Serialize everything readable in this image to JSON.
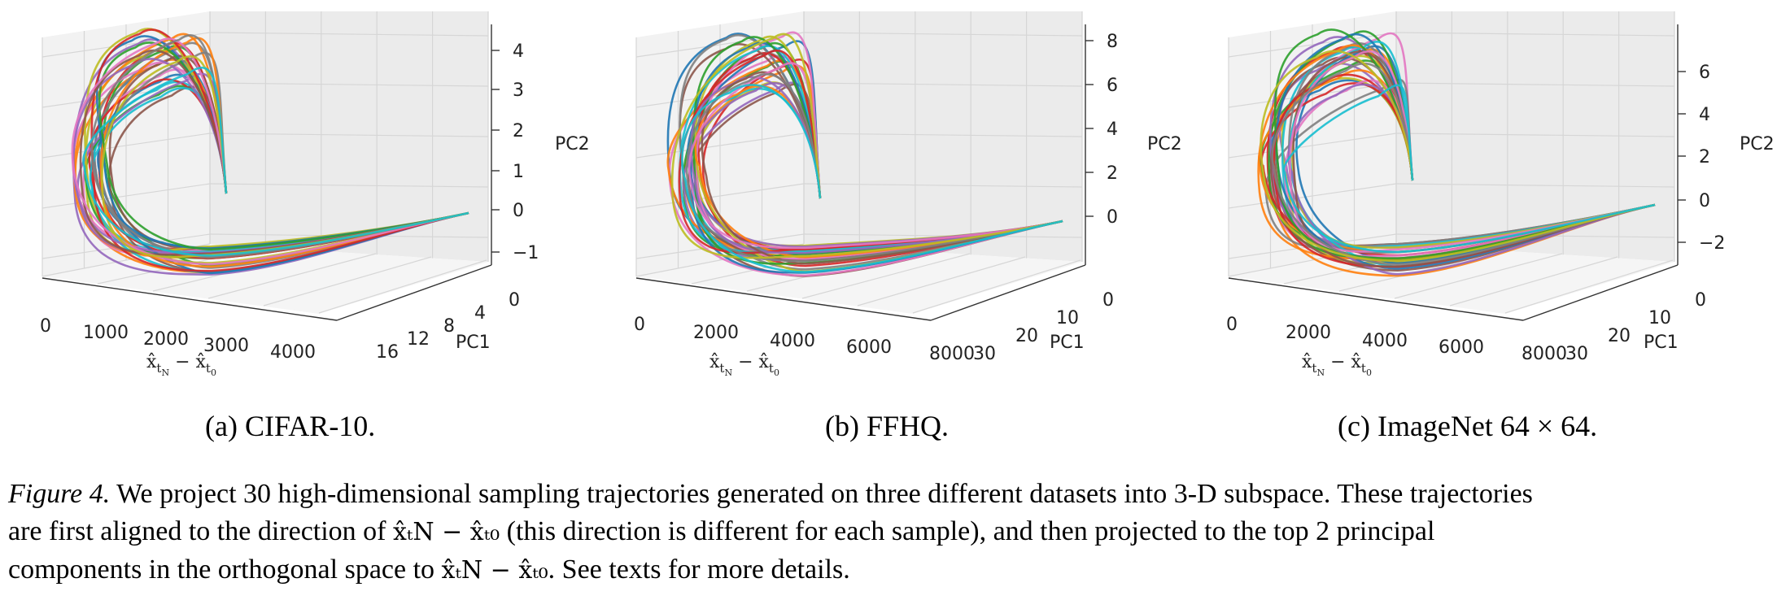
{
  "panels": [
    {
      "id": "a",
      "caption": "(a) CIFAR-10.",
      "xlabel": "x̂_{t_N} − x̂_{t_0}",
      "xticks": [
        "0",
        "1000",
        "2000",
        "3000",
        "4000"
      ],
      "ylabel": "PC1",
      "yticks": [
        "0",
        "4",
        "8",
        "12",
        "16"
      ],
      "zlabel": "PC2",
      "zticks": [
        "4",
        "3",
        "2",
        "1",
        "0",
        "−1"
      ]
    },
    {
      "id": "b",
      "caption": "(b) FFHQ.",
      "xlabel": "x̂_{t_N} − x̂_{t_0}",
      "xticks": [
        "0",
        "2000",
        "4000",
        "6000",
        "8000"
      ],
      "ylabel": "PC1",
      "yticks": [
        "0",
        "10",
        "20",
        "30"
      ],
      "zlabel": "PC2",
      "zticks": [
        "8",
        "6",
        "4",
        "2",
        "0"
      ]
    },
    {
      "id": "c",
      "caption": "(c) ImageNet 64 × 64.",
      "xlabel": "x̂_{t_N} − x̂_{t_0}",
      "xticks": [
        "0",
        "2000",
        "4000",
        "6000",
        "8000"
      ],
      "ylabel": "PC1",
      "yticks": [
        "0",
        "10",
        "20",
        "30"
      ],
      "zlabel": "PC2",
      "zticks": [
        "6",
        "4",
        "2",
        "0",
        "−2"
      ]
    }
  ],
  "caption": {
    "label": "Figure 4.",
    "line1": "We project 30 high-dimensional sampling trajectories generated on three different datasets into 3-D subspace. These trajectories",
    "line2_a": "are first aligned to the direction of",
    "line2_math": "x̂ₜN − x̂ₜ₀",
    "line2_b": "(this direction is different for each sample), and then projected to the top 2 principal",
    "line3_a": "components in the orthogonal space to",
    "line3_math": "x̂ₜN − x̂ₜ₀",
    "line3_b": ". See texts for more details."
  },
  "colors": [
    "#1f77b4",
    "#ff7f0e",
    "#2ca02c",
    "#d62728",
    "#9467bd",
    "#8c564b",
    "#e377c2",
    "#7f7f7f",
    "#bcbd22",
    "#17becf"
  ],
  "chart_data": [
    {
      "type": "line3d",
      "title": "(a) CIFAR-10.",
      "series_count": 30,
      "xlim": [
        0,
        4500
      ],
      "ylim": [
        0,
        16
      ],
      "zlim": [
        -1,
        4.5
      ]
    },
    {
      "type": "line3d",
      "title": "(b) FFHQ.",
      "series_count": 30,
      "xlim": [
        0,
        9000
      ],
      "ylim": [
        0,
        30
      ],
      "zlim": [
        -1,
        8.5
      ]
    },
    {
      "type": "line3d",
      "title": "(c) ImageNet 64 × 64.",
      "series_count": 30,
      "xlim": [
        0,
        9000
      ],
      "ylim": [
        0,
        30
      ],
      "zlim": [
        -3,
        7.5
      ]
    }
  ]
}
